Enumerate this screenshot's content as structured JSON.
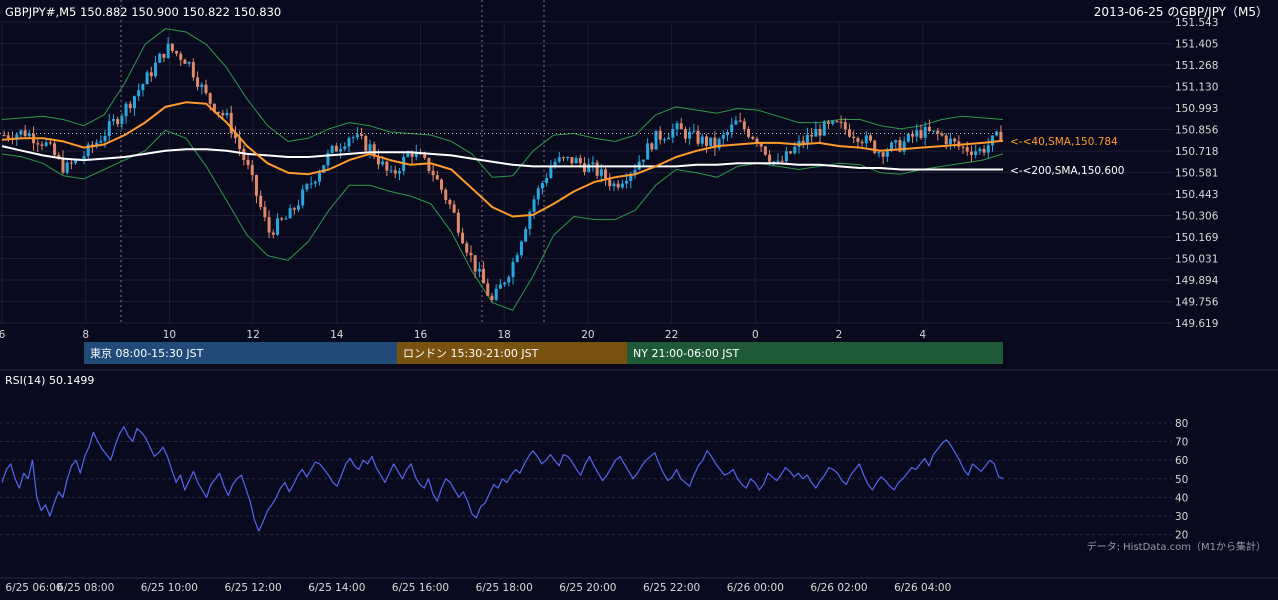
{
  "header": {
    "symbol_line": "GBPJPY#,M5 150.882 150.900 150.822 150.830",
    "title": "2013-06-25 のGBP/JPY（M5）"
  },
  "colors": {
    "background": "#0a0a1e",
    "candle_up": "#29a8e0",
    "candle_down": "#e08a6a",
    "sma40": "#ff9a2e",
    "sma200": "#ffffff",
    "bollinger": "#2f9a4a",
    "rsi": "#5566ee",
    "session_tokyo": "#204a78",
    "session_london": "#7a5210",
    "session_ny": "#1f5a36"
  },
  "chart_data": [
    {
      "type": "candlestick",
      "ylim": [
        149.619,
        151.543
      ],
      "y_ticks": [
        "151.543",
        "151.405",
        "151.268",
        "151.130",
        "150.993",
        "150.856",
        "150.718",
        "150.581",
        "150.443",
        "150.306",
        "150.169",
        "150.031",
        "149.894",
        "149.756",
        "149.619"
      ],
      "x_ticks": [
        "6",
        "8",
        "10",
        "12",
        "14",
        "16",
        "18",
        "20",
        "22",
        "0",
        "2",
        "4"
      ],
      "current_price": 150.83,
      "bar_count": 238,
      "close_path": [
        150.82,
        150.84,
        150.77,
        150.6,
        150.7,
        150.84,
        151.0,
        151.18,
        151.38,
        151.3,
        151.05,
        150.92,
        150.6,
        150.2,
        150.3,
        150.5,
        150.7,
        150.82,
        150.74,
        150.55,
        150.72,
        150.6,
        150.35,
        150.02,
        149.75,
        150.0,
        150.4,
        150.65,
        150.66,
        150.6,
        150.5,
        150.62,
        150.8,
        150.86,
        150.8,
        150.75,
        150.9,
        150.8,
        150.62,
        150.75,
        150.85,
        150.88,
        150.82,
        150.72,
        150.75,
        150.84,
        150.82,
        150.74,
        150.72,
        150.82
      ],
      "series": [
        {
          "name": "40,SMA",
          "label": "<-<40,SMA,150.784",
          "values": [
            150.79,
            150.8,
            150.8,
            150.78,
            150.74,
            150.76,
            150.82,
            150.9,
            151.0,
            151.03,
            151.02,
            150.9,
            150.75,
            150.64,
            150.58,
            150.57,
            150.6,
            150.66,
            150.7,
            150.66,
            150.63,
            150.64,
            150.6,
            150.48,
            150.36,
            150.3,
            150.31,
            150.38,
            150.46,
            150.52,
            150.55,
            150.57,
            150.62,
            150.68,
            150.72,
            150.75,
            150.76,
            150.77,
            150.77,
            150.76,
            150.77,
            150.75,
            150.74,
            150.72,
            150.73,
            150.74,
            150.75,
            150.76,
            150.77,
            150.784
          ]
        },
        {
          "name": "200,SMA",
          "label": "<-<200,SMA,150.600",
          "values": [
            150.75,
            150.72,
            150.69,
            150.67,
            150.66,
            150.67,
            150.68,
            150.7,
            150.72,
            150.73,
            150.73,
            150.72,
            150.7,
            150.69,
            150.68,
            150.68,
            150.69,
            150.7,
            150.71,
            150.71,
            150.71,
            150.7,
            150.69,
            150.67,
            150.65,
            150.63,
            150.62,
            150.62,
            150.62,
            150.62,
            150.62,
            150.62,
            150.62,
            150.62,
            150.63,
            150.63,
            150.64,
            150.64,
            150.64,
            150.63,
            150.63,
            150.62,
            150.61,
            150.61,
            150.6,
            150.6,
            150.6,
            150.6,
            150.6,
            150.6
          ]
        },
        {
          "name": "Bollinger upper",
          "values": [
            150.92,
            150.93,
            150.94,
            150.92,
            150.88,
            150.95,
            151.15,
            151.4,
            151.5,
            151.48,
            151.4,
            151.25,
            151.05,
            150.88,
            150.78,
            150.8,
            150.86,
            150.9,
            150.88,
            150.84,
            150.83,
            150.82,
            150.78,
            150.7,
            150.55,
            150.56,
            150.72,
            150.82,
            150.83,
            150.8,
            150.78,
            150.82,
            150.95,
            151.0,
            150.98,
            150.96,
            150.99,
            150.98,
            150.94,
            150.9,
            150.9,
            150.92,
            150.92,
            150.88,
            150.86,
            150.88,
            150.92,
            150.94,
            150.93,
            150.92
          ]
        },
        {
          "name": "Bollinger lower",
          "values": [
            150.7,
            150.68,
            150.64,
            150.56,
            150.54,
            150.6,
            150.66,
            150.72,
            150.85,
            150.8,
            150.62,
            150.4,
            150.18,
            150.05,
            150.02,
            150.14,
            150.34,
            150.5,
            150.5,
            150.46,
            150.43,
            150.38,
            150.2,
            149.95,
            149.75,
            149.7,
            149.92,
            150.18,
            150.3,
            150.28,
            150.28,
            150.34,
            150.5,
            150.6,
            150.58,
            150.55,
            150.62,
            150.64,
            150.62,
            150.6,
            150.62,
            150.64,
            150.63,
            150.58,
            150.57,
            150.6,
            150.62,
            150.64,
            150.66,
            150.7
          ]
        }
      ]
    },
    {
      "type": "line",
      "title": "RSI(14) 50.1499",
      "ylim": [
        15,
        88
      ],
      "y_ticks": [
        "80",
        "70",
        "60",
        "50",
        "40",
        "30",
        "20"
      ],
      "x_ticks": [
        "6/25 06:00",
        "6/25 08:00",
        "6/25 10:00",
        "6/25 12:00",
        "6/25 14:00",
        "6/25 16:00",
        "6/25 18:00",
        "6/25 20:00",
        "6/25 22:00",
        "6/26 00:00",
        "6/26 02:00",
        "6/26 04:00"
      ],
      "series": [
        {
          "name": "RSI(14)",
          "values": [
            48,
            55,
            58,
            50,
            45,
            53,
            50,
            60,
            40,
            33,
            36,
            30,
            37,
            43,
            40,
            50,
            57,
            60,
            53,
            62,
            67,
            75,
            70,
            66,
            63,
            60,
            68,
            74,
            78,
            73,
            70,
            77,
            75,
            72,
            67,
            62,
            64,
            67,
            62,
            55,
            48,
            52,
            44,
            49,
            54,
            48,
            44,
            40,
            47,
            50,
            53,
            46,
            41,
            47,
            50,
            52,
            45,
            38,
            28,
            22,
            27,
            33,
            36,
            40,
            45,
            48,
            43,
            47,
            52,
            55,
            51,
            55,
            59,
            58,
            55,
            52,
            48,
            46,
            52,
            58,
            61,
            57,
            55,
            60,
            58,
            62,
            56,
            52,
            48,
            53,
            58,
            54,
            50,
            55,
            58,
            51,
            47,
            45,
            50,
            42,
            38,
            45,
            50,
            48,
            44,
            40,
            43,
            38,
            31,
            29,
            35,
            37,
            42,
            47,
            45,
            50,
            48,
            52,
            55,
            53,
            58,
            62,
            65,
            62,
            58,
            60,
            63,
            60,
            57,
            63,
            62,
            59,
            55,
            52,
            58,
            62,
            57,
            53,
            49,
            52,
            56,
            60,
            62,
            58,
            54,
            50,
            53,
            57,
            60,
            62,
            64,
            58,
            53,
            49,
            51,
            55,
            50,
            48,
            46,
            52,
            57,
            60,
            65,
            62,
            58,
            55,
            52,
            53,
            55,
            50,
            47,
            45,
            50,
            48,
            44,
            47,
            53,
            51,
            49,
            52,
            56,
            54,
            51,
            53,
            50,
            52,
            48,
            45,
            49,
            52,
            56,
            55,
            53,
            49,
            47,
            52,
            55,
            58,
            52,
            47,
            44,
            48,
            51,
            49,
            46,
            44,
            48,
            50,
            53,
            56,
            55,
            58,
            61,
            57,
            63,
            66,
            69,
            71,
            68,
            64,
            60,
            55,
            52,
            58,
            56,
            54,
            57,
            60,
            58,
            51,
            50.1499
          ]
        }
      ]
    }
  ],
  "sessions": [
    {
      "label": "東京 08:00-15:30 JST",
      "color": "#204a78"
    },
    {
      "label": "ロンドン 15:30-21:00 JST",
      "color": "#7a5210"
    },
    {
      "label": "NY 21:00-06:00 JST",
      "color": "#1f5a36"
    }
  ],
  "footer": {
    "source": "データ: HistData.com（M1から集計）"
  }
}
